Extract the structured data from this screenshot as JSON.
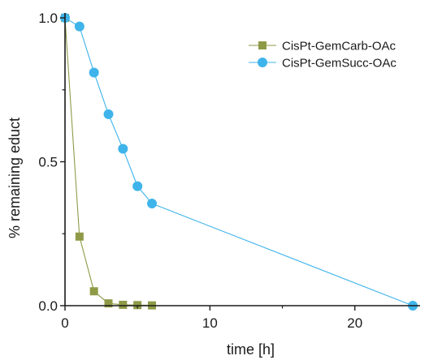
{
  "chart_data": {
    "type": "line",
    "xlabel": "time [h]",
    "ylabel": "% remaining educt",
    "xlim": [
      0,
      24.5
    ],
    "ylim": [
      0,
      1.0
    ],
    "x_ticks": [
      0,
      10,
      20
    ],
    "x_tick_labels": [
      "0",
      "10",
      "20"
    ],
    "y_ticks": [
      0.0,
      0.5,
      1.0
    ],
    "y_tick_labels": [
      "0.0",
      "0.5",
      "1.0"
    ],
    "grid": false,
    "legend_position": "top-right",
    "series": [
      {
        "name": "CisPt-GemCarb-OAc",
        "marker": "square",
        "color": "#8f9a46",
        "x": [
          0,
          1,
          2,
          3,
          4,
          5,
          6
        ],
        "y": [
          1.0,
          0.24,
          0.05,
          0.008,
          0.003,
          0.002,
          0.001
        ]
      },
      {
        "name": "CisPt-GemSucc-OAc",
        "marker": "circle",
        "color": "#3fb4ea",
        "x": [
          0,
          1,
          2,
          3,
          4,
          5,
          6,
          24
        ],
        "y": [
          1.0,
          0.97,
          0.81,
          0.665,
          0.545,
          0.415,
          0.355,
          0.0
        ]
      }
    ]
  }
}
